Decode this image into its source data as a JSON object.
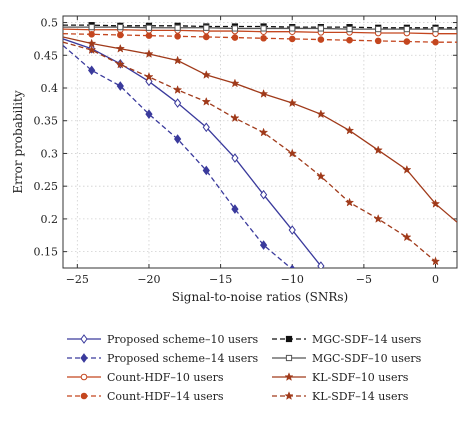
{
  "chart_data": {
    "type": "line",
    "title": "",
    "xlabel": "Signal-to-noise ratios (SNRs)",
    "ylabel": "Error probability",
    "xlim": [
      -26,
      1.5
    ],
    "ylim": [
      0.125,
      0.51
    ],
    "grid": true,
    "legend_position": "below",
    "x_ticks": [
      -25,
      -20,
      -15,
      -10,
      -5,
      0
    ],
    "x_tick_labels": [
      "−25",
      "−20",
      "−15",
      "−10",
      "−5",
      "0"
    ],
    "y_ticks": [
      0.15,
      0.2,
      0.25,
      0.3,
      0.35,
      0.4,
      0.45,
      0.5
    ],
    "y_tick_labels": [
      "0.15",
      "0.2",
      "0.25",
      "0.3",
      "0.35",
      "0.4",
      "0.45",
      "0.5"
    ],
    "series": [
      {
        "name": "Proposed scheme–10 users",
        "color": "#3a3a9c",
        "dash": "solid",
        "marker": "diamond-open",
        "x": [
          -26,
          -24,
          -22,
          -20,
          -18,
          -16,
          -14,
          -12,
          -10,
          -8
        ],
        "y": [
          0.475,
          0.46,
          0.437,
          0.41,
          0.377,
          0.34,
          0.293,
          0.237,
          0.183,
          0.128
        ]
      },
      {
        "name": "Proposed scheme–14 users",
        "color": "#3a3a9c",
        "dash": "dashed",
        "marker": "diamond-filled",
        "x": [
          -26,
          -24,
          -22,
          -20,
          -18,
          -16,
          -14,
          -12,
          -10
        ],
        "y": [
          0.465,
          0.427,
          0.403,
          0.36,
          0.322,
          0.274,
          0.215,
          0.16,
          0.123
        ]
      },
      {
        "name": "Count-HDF–10 users",
        "color": "#c4461f",
        "dash": "solid",
        "marker": "circle-open",
        "x": [
          -26,
          -24,
          -22,
          -20,
          -18,
          -16,
          -14,
          -12,
          -10,
          -8,
          -6,
          -4,
          -2,
          0,
          1.5
        ],
        "y": [
          0.49,
          0.489,
          0.489,
          0.488,
          0.488,
          0.487,
          0.487,
          0.486,
          0.486,
          0.485,
          0.485,
          0.484,
          0.484,
          0.483,
          0.483
        ]
      },
      {
        "name": "Count-HDF–14 users",
        "color": "#c4461f",
        "dash": "dashed",
        "marker": "circle-filled",
        "x": [
          -26,
          -24,
          -22,
          -20,
          -18,
          -16,
          -14,
          -12,
          -10,
          -8,
          -6,
          -4,
          -2,
          0,
          1.5
        ],
        "y": [
          0.483,
          0.482,
          0.481,
          0.48,
          0.479,
          0.478,
          0.477,
          0.476,
          0.475,
          0.474,
          0.473,
          0.472,
          0.471,
          0.47,
          0.47
        ]
      },
      {
        "name": "MGC-SDF–14 users",
        "color": "#111111",
        "dash": "dashed",
        "marker": "square-filled",
        "x": [
          -26,
          -24,
          -22,
          -20,
          -18,
          -16,
          -14,
          -12,
          -10,
          -8,
          -6,
          -4,
          -2,
          0,
          1.5
        ],
        "y": [
          0.496,
          0.496,
          0.495,
          0.495,
          0.495,
          0.494,
          0.494,
          0.494,
          0.493,
          0.493,
          0.493,
          0.492,
          0.492,
          0.492,
          0.492
        ]
      },
      {
        "name": "MGC-SDF–10 users",
        "color": "#555555",
        "dash": "solid",
        "marker": "square-open",
        "x": [
          -26,
          -24,
          -22,
          -20,
          -18,
          -16,
          -14,
          -12,
          -10,
          -8,
          -6,
          -4,
          -2,
          0,
          1.5
        ],
        "y": [
          0.493,
          0.493,
          0.493,
          0.492,
          0.492,
          0.492,
          0.491,
          0.491,
          0.491,
          0.491,
          0.49,
          0.49,
          0.49,
          0.49,
          0.49
        ]
      },
      {
        "name": "KL-SDF–10 users",
        "color": "#a03a1a",
        "dash": "solid",
        "marker": "star",
        "x": [
          -26,
          -24,
          -22,
          -20,
          -18,
          -16,
          -14,
          -12,
          -10,
          -8,
          -6,
          -4,
          -2,
          0,
          1.5
        ],
        "y": [
          0.478,
          0.468,
          0.46,
          0.452,
          0.442,
          0.42,
          0.407,
          0.391,
          0.377,
          0.36,
          0.335,
          0.305,
          0.275,
          0.223,
          0.195
        ]
      },
      {
        "name": "KL-SDF–14 users",
        "color": "#a03a1a",
        "dash": "dashed",
        "marker": "star",
        "x": [
          -26,
          -24,
          -22,
          -20,
          -18,
          -16,
          -14,
          -12,
          -10,
          -8,
          -6,
          -4,
          -2,
          0
        ],
        "y": [
          0.47,
          0.458,
          0.436,
          0.417,
          0.397,
          0.379,
          0.354,
          0.332,
          0.3,
          0.265,
          0.225,
          0.2,
          0.172,
          0.135
        ]
      }
    ]
  }
}
